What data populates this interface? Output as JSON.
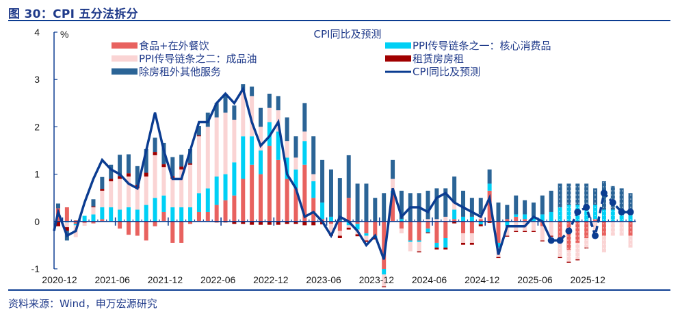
{
  "figure": {
    "title": "图 30：CPI 五分法拆分",
    "source": "资料来源：Wind，申万宏源研究"
  },
  "chart_data": {
    "type": "bar",
    "stacked": true,
    "title": "CPI同比及预测",
    "ylabel": "%",
    "xlabel": "",
    "ylim": [
      -1,
      4
    ],
    "yticks": [
      -1,
      0,
      1,
      2,
      3,
      4
    ],
    "xtick_labels": [
      "2020-12",
      "2021-06",
      "2021-12",
      "2022-06",
      "2022-12",
      "2023-06",
      "2023-12",
      "2024-06",
      "2024-12",
      "2025-06",
      "2025-12"
    ],
    "grid": false,
    "legend": "top",
    "forecast_start": "2025-09",
    "categories": [
      "2020-12",
      "2021-01",
      "2021-02",
      "2021-03",
      "2021-04",
      "2021-05",
      "2021-06",
      "2021-07",
      "2021-08",
      "2021-09",
      "2021-10",
      "2021-11",
      "2021-12",
      "2022-01",
      "2022-02",
      "2022-03",
      "2022-04",
      "2022-05",
      "2022-06",
      "2022-07",
      "2022-08",
      "2022-09",
      "2022-10",
      "2022-11",
      "2022-12",
      "2023-01",
      "2023-02",
      "2023-03",
      "2023-04",
      "2023-05",
      "2023-06",
      "2023-07",
      "2023-08",
      "2023-09",
      "2023-10",
      "2023-11",
      "2023-12",
      "2024-01",
      "2024-02",
      "2024-03",
      "2024-04",
      "2024-05",
      "2024-06",
      "2024-07",
      "2024-08",
      "2024-09",
      "2024-10",
      "2024-11",
      "2024-12",
      "2025-01",
      "2025-02",
      "2025-03",
      "2025-04",
      "2025-05",
      "2025-06",
      "2025-07",
      "2025-08",
      "2025-09",
      "2025-10",
      "2025-11",
      "2025-12",
      "2026-01",
      "2026-02",
      "2026-03",
      "2026-04",
      "2026-05"
    ],
    "series": [
      {
        "name": "食品+在外餐饮",
        "color": "#e8625f",
        "values": [
          0.28,
          0.3,
          -0.05,
          -0.03,
          -0.04,
          0.05,
          0.0,
          -0.15,
          -0.28,
          -0.3,
          -0.4,
          -0.1,
          0.2,
          -0.45,
          -0.45,
          -0.05,
          0.2,
          0.2,
          0.35,
          0.45,
          0.55,
          0.9,
          1.2,
          1.0,
          1.6,
          1.3,
          0.9,
          0.7,
          1.2,
          0.5,
          0.05,
          -0.05,
          -0.2,
          0.5,
          -0.05,
          -0.25,
          -0.3,
          -1.0,
          0.6,
          -0.15,
          -0.4,
          -0.4,
          -0.15,
          -0.45,
          -0.35,
          0.05,
          -0.25,
          -0.25,
          0.05,
          0.65,
          -0.45,
          0.05,
          0.1,
          0.05,
          0.0,
          -0.1,
          0.0,
          -0.4,
          -0.6,
          -0.45,
          -0.35,
          0.05,
          -0.3,
          0.0,
          0.0,
          -0.3
        ]
      },
      {
        "name": "PPI传导链条之一：核心消费品",
        "color": "#00d0f5",
        "values": [
          0.0,
          -0.02,
          -0.03,
          0.12,
          0.15,
          0.25,
          0.3,
          0.25,
          0.3,
          0.25,
          0.35,
          0.5,
          0.35,
          0.3,
          0.3,
          0.3,
          0.4,
          0.5,
          0.6,
          0.55,
          0.7,
          0.9,
          0.6,
          0.5,
          0.5,
          0.6,
          0.45,
          0.4,
          0.5,
          0.35,
          0.35,
          0.1,
          0.02,
          -0.08,
          -0.12,
          -0.05,
          -0.05,
          -0.12,
          0.05,
          0.05,
          -0.03,
          -0.03,
          -0.08,
          -0.1,
          -0.2,
          0.2,
          0.1,
          0.1,
          -0.06,
          0.15,
          -0.1,
          -0.1,
          0.05,
          0.1,
          0.1,
          0.15,
          0.2,
          0.3,
          0.35,
          0.35,
          0.35,
          0.3,
          0.25,
          0.25,
          0.2,
          0.15
        ]
      },
      {
        "name": "PPI传导链条之二：成品油",
        "color": "#fad4d4",
        "values": [
          0.0,
          -0.1,
          -0.25,
          -0.06,
          0.15,
          0.35,
          0.55,
          0.65,
          0.65,
          0.45,
          0.6,
          0.9,
          0.6,
          0.6,
          0.8,
          0.9,
          1.2,
          1.3,
          1.25,
          1.3,
          0.9,
          0.95,
          0.85,
          0.5,
          0.3,
          0.45,
          0.35,
          0.25,
          0.2,
          0.15,
          0.0,
          -0.2,
          -0.1,
          -0.05,
          -0.1,
          -0.1,
          0.0,
          -0.25,
          0.25,
          -0.1,
          -0.2,
          -0.2,
          0.05,
          0.05,
          0.1,
          0.15,
          -0.2,
          -0.2,
          0.1,
          0.0,
          -0.2,
          -0.2,
          -0.2,
          -0.2,
          -0.2,
          -0.3,
          -0.3,
          -0.35,
          -0.25,
          -0.35,
          -0.2,
          -0.3,
          -0.35,
          -0.3,
          -0.3,
          -0.25
        ]
      },
      {
        "name": "租赁房房租",
        "color": "#a00000",
        "values": [
          -0.1,
          -0.08,
          0.02,
          0.0,
          0.02,
          0.04,
          0.05,
          0.06,
          0.07,
          0.07,
          0.08,
          0.07,
          0.06,
          0.06,
          0.06,
          0.03,
          0.02,
          0.0,
          -0.02,
          -0.02,
          -0.05,
          -0.05,
          -0.07,
          -0.07,
          -0.07,
          -0.07,
          -0.05,
          -0.05,
          -0.08,
          -0.08,
          -0.06,
          -0.05,
          -0.05,
          -0.04,
          -0.04,
          -0.03,
          -0.03,
          -0.02,
          0.0,
          0.0,
          0.0,
          -0.02,
          -0.02,
          -0.04,
          -0.04,
          -0.04,
          -0.04,
          -0.04,
          -0.04,
          -0.03,
          -0.02,
          -0.02,
          -0.02,
          -0.02,
          -0.02,
          -0.02,
          -0.02,
          -0.02,
          -0.02,
          -0.02,
          -0.02,
          0.0,
          0.0,
          0.0,
          0.0,
          0.0
        ]
      },
      {
        "name": "除房租外其他服务",
        "color": "#2b6496",
        "values": [
          0.1,
          -0.2,
          0.0,
          0.0,
          0.15,
          0.25,
          0.3,
          0.45,
          0.4,
          0.4,
          0.5,
          0.3,
          0.45,
          0.4,
          0.25,
          0.3,
          0.2,
          0.3,
          0.3,
          0.4,
          0.3,
          0.15,
          0.2,
          0.4,
          0.3,
          0.3,
          0.5,
          0.45,
          0.6,
          0.8,
          0.9,
          1.0,
          0.9,
          0.9,
          0.8,
          0.8,
          0.5,
          0.6,
          0.4,
          0.6,
          0.6,
          0.6,
          0.6,
          0.65,
          0.6,
          0.55,
          0.55,
          0.4,
          0.35,
          0.3,
          0.4,
          0.3,
          0.4,
          0.3,
          0.3,
          0.4,
          0.45,
          0.5,
          0.45,
          0.45,
          0.45,
          0.35,
          0.6,
          0.5,
          0.5,
          0.45
        ]
      }
    ],
    "line": {
      "name": "CPI同比及预测",
      "color": "#0b3c91",
      "values": [
        0.2,
        -0.3,
        -0.2,
        0.4,
        0.9,
        1.3,
        1.1,
        1.0,
        0.8,
        0.7,
        1.5,
        2.3,
        1.5,
        0.9,
        0.9,
        1.5,
        2.1,
        2.1,
        2.5,
        2.7,
        2.5,
        2.8,
        2.1,
        1.6,
        1.8,
        2.1,
        1.0,
        0.7,
        0.1,
        0.2,
        0.0,
        -0.3,
        0.1,
        0.0,
        -0.2,
        -0.5,
        -0.3,
        -0.8,
        0.7,
        0.1,
        0.3,
        0.3,
        0.2,
        0.5,
        0.6,
        0.4,
        0.3,
        0.2,
        0.1,
        0.5,
        -0.7,
        -0.1,
        -0.1,
        -0.1,
        0.1,
        0.0,
        -0.4,
        -0.4,
        -0.2,
        0.2,
        0.3,
        -0.3,
        0.6,
        0.4,
        0.2,
        0.2
      ],
      "forecast_from_index": 56
    }
  },
  "legend": {
    "items": [
      {
        "label": "食品+在外餐饮",
        "color": "#e8625f",
        "kind": "bar"
      },
      {
        "label": "PPI传导链条之一：核心消费品",
        "color": "#00d0f5",
        "kind": "bar"
      },
      {
        "label": "PPI传导链条之二：成品油",
        "color": "#fad4d4",
        "kind": "bar"
      },
      {
        "label": "租赁房房租",
        "color": "#a00000",
        "kind": "bar"
      },
      {
        "label": "除房租外其他服务",
        "color": "#2b6496",
        "kind": "bar"
      },
      {
        "label": "CPI同比及预测",
        "color": "#0b3c91",
        "kind": "line"
      }
    ]
  }
}
